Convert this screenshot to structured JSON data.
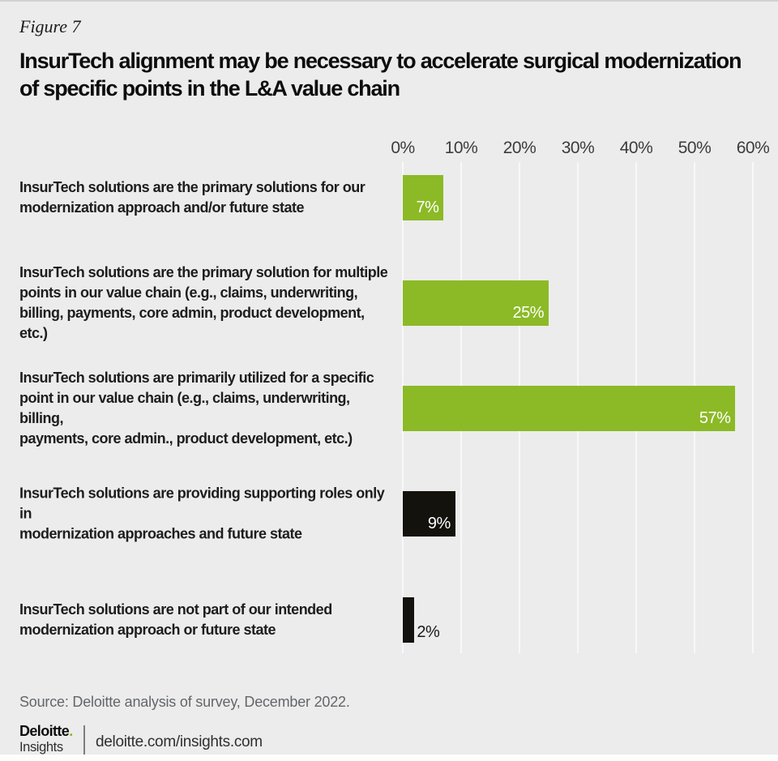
{
  "figure_label": "Figure 7",
  "title": "InsurTech alignment may be necessary to accelerate surgical modernization\nof specific points in the L&A value chain",
  "chart_data": {
    "type": "bar",
    "orientation": "horizontal",
    "unit": "%",
    "title": "InsurTech alignment may be necessary to accelerate surgical modernization of specific points in the L&A value chain",
    "categories": [
      "InsurTech solutions are the primary solutions for our\nmodernization approach and/or future state",
      "InsurTech solutions are the primary solution for multiple\npoints in our value chain (e.g., claims, underwriting,\nbilling, payments, core admin, product development, etc.)",
      "InsurTech solutions are primarily utilized for a specific\npoint in our value chain (e.g., claims, underwriting, billing,\npayments, core admin., product development, etc.)",
      "InsurTech solutions are providing supporting roles only in\nmodernization approaches and future state",
      "InsurTech solutions are not part of our intended\nmodernization approach or future state"
    ],
    "values": [
      7,
      25,
      57,
      9,
      2
    ],
    "value_labels": [
      "7%",
      "25%",
      "57%",
      "9%",
      "2%"
    ],
    "bar_colors": [
      "#8bba26",
      "#8bba26",
      "#8bba26",
      "#14120d",
      "#14120d"
    ],
    "x_axis": {
      "position": "top",
      "min": 0,
      "max": 60,
      "ticks": [
        "0%",
        "10%",
        "20%",
        "30%",
        "40%",
        "50%",
        "60%"
      ]
    },
    "grid": true,
    "legend": false
  },
  "source": "Source: Deloitte analysis of survey, December 2022.",
  "footer": {
    "brand": "Deloitte",
    "brand_dot": ".",
    "brand_sub": "Insights",
    "url": "deloitte.com/insights.com"
  },
  "colors": {
    "background": "#ececec",
    "green": "#8bba26",
    "dark_bar": "#14120d",
    "gridline": "#f8f8f8",
    "source_text": "#63666a",
    "brand_green": "#86bc25"
  }
}
